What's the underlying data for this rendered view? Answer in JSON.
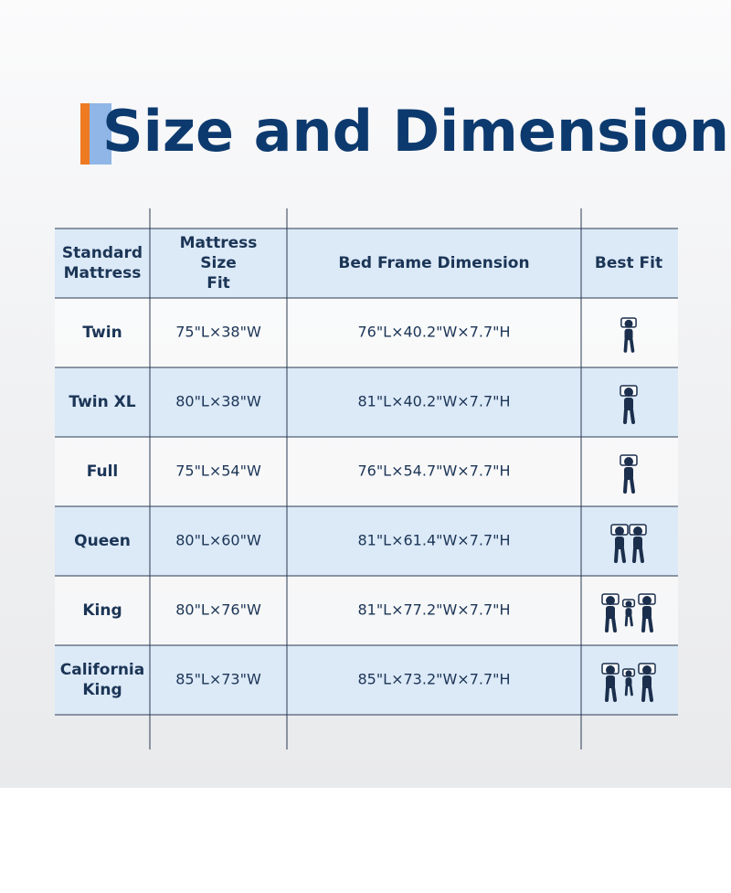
{
  "header": {
    "title": "Size and Dimension"
  },
  "table": {
    "columns": [
      "Standard Mattress",
      "Mattress Size Fit",
      "Bed Frame  Dimension",
      "Best Fit"
    ],
    "rows": [
      [
        "Twin",
        "75\"L×38\"W",
        "76\"L×40.2\"W×7.7\"H"
      ],
      [
        "Twin XL",
        "80\"L×38\"W",
        "81\"L×40.2\"W×7.7\"H"
      ],
      [
        "Full",
        "75\"L×54\"W",
        "76\"L×54.7\"W×7.7\"H"
      ],
      [
        "Queen",
        "80\"L×60\"W",
        "81\"L×61.4\"W×7.7\"H"
      ],
      [
        "King",
        "80\"L×76\"W",
        "81\"L×77.2\"W×7.7\"H"
      ],
      [
        "California King",
        "85\"L×73\"W",
        "85\"L×73.2\"W×7.7\"H"
      ]
    ]
  }
}
